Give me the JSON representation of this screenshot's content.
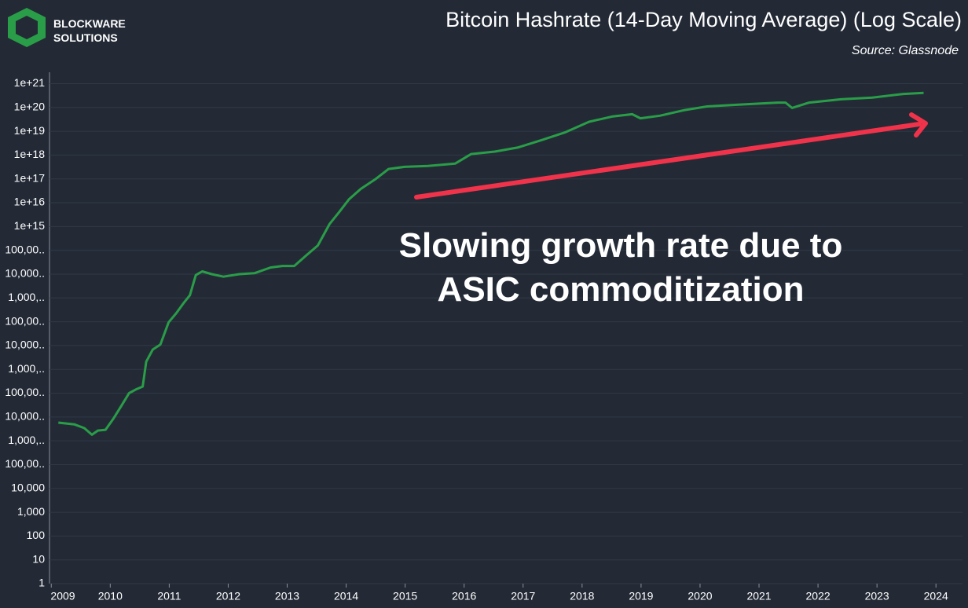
{
  "brand": {
    "line1": "BLOCKWARE",
    "line2": "SOLUTIONS"
  },
  "chart_data": {
    "type": "line",
    "title": "Bitcoin Hashrate (14-Day Moving Average) (Log Scale)",
    "subtitle": "Source: Glassnode",
    "annotation": "Slowing growth rate due to ASIC commoditization",
    "log_y": true,
    "grid": true,
    "xlim": [
      2008.97,
      2024.45
    ],
    "xticks": [
      2009,
      2010,
      2011,
      2012,
      2013,
      2014,
      2015,
      2016,
      2017,
      2018,
      2019,
      2020,
      2021,
      2022,
      2023,
      2024
    ],
    "ylim": [
      1,
      3e+21
    ],
    "yticks": [
      1,
      10,
      100,
      {
        "value": 1000,
        "label": "1,000"
      },
      {
        "value": 10000,
        "label": "10,000"
      },
      {
        "value": 100000.0,
        "label": "100,00.."
      },
      {
        "value": 1000000.0,
        "label": "1,000,.."
      },
      {
        "value": 10000000.0,
        "label": "10,000.."
      },
      {
        "value": 100000000.0,
        "label": "100,00.."
      },
      {
        "value": 1000000000.0,
        "label": "1,000,.."
      },
      {
        "value": 10000000000.0,
        "label": "10,000.."
      },
      {
        "value": 100000000000.0,
        "label": "100,00.."
      },
      {
        "value": 1000000000000.0,
        "label": "1,000,.."
      },
      {
        "value": 10000000000000.0,
        "label": "10,000.."
      },
      {
        "value": 100000000000000.0,
        "label": "100,00.."
      },
      {
        "value": 1000000000000000.0,
        "label": "1e+15"
      },
      {
        "value": 1e+16,
        "label": "1e+16"
      },
      {
        "value": 1e+17,
        "label": "1e+17"
      },
      {
        "value": 1e+18,
        "label": "1e+18"
      },
      {
        "value": 1e+19,
        "label": "1e+19"
      },
      {
        "value": 1e+20,
        "label": "1e+20"
      },
      {
        "value": 1e+21,
        "label": "1e+21"
      }
    ],
    "series": [
      {
        "name": "Hashrate",
        "color": "#2a9d48",
        "x": [
          2009.12,
          2009.39,
          2009.56,
          2009.69,
          2009.79,
          2009.92,
          2010.05,
          2010.19,
          2010.32,
          2010.45,
          2010.55,
          2010.61,
          2010.72,
          2010.85,
          2010.99,
          2011.12,
          2011.25,
          2011.35,
          2011.45,
          2011.56,
          2011.72,
          2011.92,
          2012.19,
          2012.45,
          2012.72,
          2012.92,
          2013.12,
          2013.32,
          2013.52,
          2013.72,
          2013.88,
          2014.05,
          2014.25,
          2014.49,
          2014.72,
          2014.99,
          2015.39,
          2015.85,
          2016.12,
          2016.52,
          2016.92,
          2017.32,
          2017.72,
          2018.12,
          2018.52,
          2018.85,
          2018.99,
          2019.32,
          2019.72,
          2020.12,
          2020.65,
          2021.32,
          2021.45,
          2021.56,
          2021.85,
          2022.39,
          2022.92,
          2023.45,
          2023.79
        ],
        "values": [
          5800000.0,
          4900000.0,
          3400000.0,
          1800000.0,
          2700000.0,
          2900000.0,
          8300000.0,
          30000000.0,
          100000000.0,
          150000000.0,
          190000000.0,
          2100000000.0,
          6800000000.0,
          11000000000.0,
          95000000000.0,
          230000000000.0,
          630000000000.0,
          1300000000000.0,
          9100000000000.0,
          13000000000000.0,
          10000000000000.0,
          7800000000000.0,
          10000000000000.0,
          11000000000000.0,
          19000000000000.0,
          22000000000000.0,
          22000000000000.0,
          60000000000000.0,
          160000000000000.0,
          1300000000000000.0,
          4000000000000000.0,
          1.4e+16,
          3.8e+16,
          9.5e+16,
          2.6e+17,
          3.2e+17,
          3.5e+17,
          4.4e+17,
          1.1e+18,
          1.4e+18,
          2.1e+18,
          4.3e+18,
          9.1e+18,
          2.5e+19,
          4.2e+19,
          5.2e+19,
          3.5e+19,
          4.5e+19,
          7.6e+19,
          1.1e+20,
          1.3e+20,
          1.6e+20,
          1.6e+20,
          9.5e+19,
          1.6e+20,
          2.2e+20,
          2.6e+20,
          3.7e+20,
          4.1e+20
        ]
      }
    ]
  }
}
